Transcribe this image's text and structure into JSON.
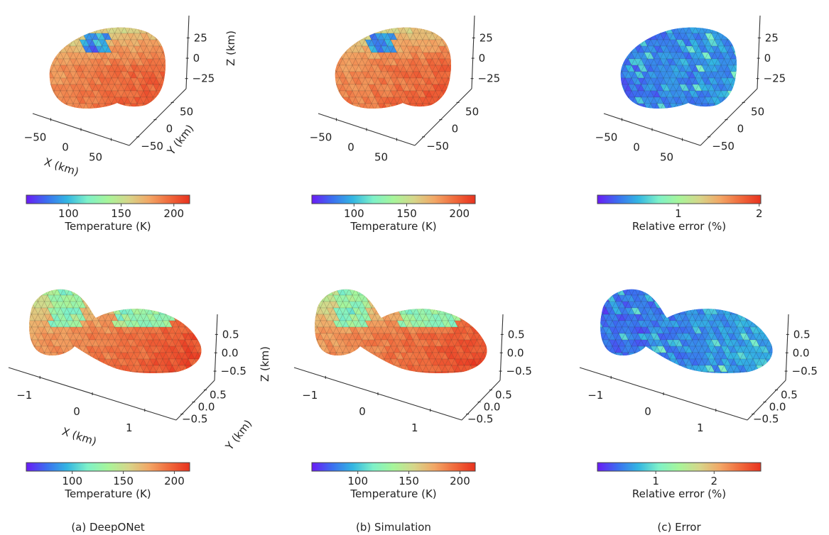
{
  "figure": {
    "captions": [
      "(a) DeepONet",
      "(b) Simulation",
      "(c) Error"
    ]
  },
  "chart_data": [
    {
      "type": "heatmap",
      "subtype": "3d-mesh-surface",
      "panel": "top-deeponet",
      "column_caption": "(a) DeepONet",
      "body_shape": "irregular-lumpy",
      "xlabel": "X (km)",
      "ylabel": "Y (km)",
      "zlabel": "Z (km)",
      "xticks": [
        "−50",
        "0",
        "50"
      ],
      "yticks": [
        "−50",
        "0",
        "50"
      ],
      "zticks": [
        "−25",
        "0",
        "25"
      ],
      "show_axis_labels": true,
      "colorbar": {
        "label": "Temperature (K)",
        "range": [
          60,
          215
        ],
        "ticks": [
          100,
          150,
          200
        ],
        "tick_labels": [
          "100",
          "150",
          "200"
        ],
        "cmap": "rainbow"
      },
      "dominant_value": 185,
      "cold_spot_value": 70
    },
    {
      "type": "heatmap",
      "subtype": "3d-mesh-surface",
      "panel": "top-simulation",
      "column_caption": "(b) Simulation",
      "body_shape": "irregular-lumpy",
      "xlabel": "",
      "ylabel": "",
      "zlabel": "",
      "xticks": [
        "−50",
        "0",
        "50"
      ],
      "yticks": [
        "−50",
        "0",
        "50"
      ],
      "zticks": [
        "−25",
        "0",
        "25"
      ],
      "show_axis_labels": false,
      "colorbar": {
        "label": "Temperature (K)",
        "range": [
          60,
          215
        ],
        "ticks": [
          100,
          150,
          200
        ],
        "tick_labels": [
          "100",
          "150",
          "200"
        ],
        "cmap": "rainbow"
      },
      "dominant_value": 185,
      "cold_spot_value": 70
    },
    {
      "type": "heatmap",
      "subtype": "3d-mesh-surface",
      "panel": "top-error",
      "column_caption": "(c) Error",
      "body_shape": "irregular-lumpy",
      "xlabel": "",
      "ylabel": "",
      "zlabel": "",
      "xticks": [
        "−50",
        "0",
        "50"
      ],
      "yticks": [
        "−50",
        "0",
        "50"
      ],
      "zticks": [
        "−25",
        "0",
        "25"
      ],
      "show_axis_labels": false,
      "colorbar": {
        "label": "Relative error (%)",
        "range": [
          0,
          2.02
        ],
        "ticks": [
          1,
          2
        ],
        "tick_labels": [
          "1",
          "2"
        ],
        "cmap": "rainbow"
      },
      "dominant_value": 0.35,
      "max_value": 2.0
    },
    {
      "type": "heatmap",
      "subtype": "3d-mesh-surface",
      "panel": "bottom-deeponet",
      "column_caption": "(a) DeepONet",
      "body_shape": "contact-binary",
      "xlabel": "X (km)",
      "ylabel": "Y (km)",
      "zlabel": "Z (km)",
      "xticks": [
        "−1",
        "0",
        "1"
      ],
      "yticks": [
        "−0.5",
        "0.0",
        "0.5"
      ],
      "zticks": [
        "−0.5",
        "0.0",
        "0.5"
      ],
      "show_axis_labels": true,
      "colorbar": {
        "label": "Temperature (K)",
        "range": [
          55,
          215
        ],
        "ticks": [
          100,
          150,
          200
        ],
        "tick_labels": [
          "100",
          "150",
          "200"
        ],
        "cmap": "rainbow"
      },
      "dominant_value": 180,
      "cold_spot_value": 75
    },
    {
      "type": "heatmap",
      "subtype": "3d-mesh-surface",
      "panel": "bottom-simulation",
      "column_caption": "(b) Simulation",
      "body_shape": "contact-binary",
      "xlabel": "",
      "ylabel": "",
      "zlabel": "",
      "xticks": [
        "−1",
        "0",
        "1"
      ],
      "yticks": [
        "−0.5",
        "0.0",
        "0.5"
      ],
      "zticks": [
        "−0.5",
        "0.0",
        "0.5"
      ],
      "show_axis_labels": false,
      "colorbar": {
        "label": "Temperature (K)",
        "range": [
          55,
          215
        ],
        "ticks": [
          100,
          150,
          200
        ],
        "tick_labels": [
          "100",
          "150",
          "200"
        ],
        "cmap": "rainbow"
      },
      "dominant_value": 180,
      "cold_spot_value": 75
    },
    {
      "type": "heatmap",
      "subtype": "3d-mesh-surface",
      "panel": "bottom-error",
      "column_caption": "(c) Error",
      "body_shape": "contact-binary",
      "xlabel": "",
      "ylabel": "",
      "zlabel": "",
      "xticks": [
        "−1",
        "0",
        "1"
      ],
      "yticks": [
        "−0.5",
        "0.0",
        "0.5"
      ],
      "zticks": [
        "−0.5",
        "0.0",
        "0.5"
      ],
      "show_axis_labels": false,
      "colorbar": {
        "label": "Relative error (%)",
        "range": [
          0,
          2.8
        ],
        "ticks": [
          1,
          2
        ],
        "tick_labels": [
          "1",
          "2"
        ],
        "cmap": "rainbow"
      },
      "dominant_value": 0.2,
      "max_value": 2.8
    }
  ],
  "colors": {
    "cmap_stops": [
      "#6a1bf5",
      "#3b6ff0",
      "#33b6e2",
      "#7ef1c8",
      "#a7f59a",
      "#d6d68a",
      "#f2a766",
      "#f06a3c",
      "#e8321e"
    ],
    "axis": "#333333",
    "text": "#222222"
  }
}
